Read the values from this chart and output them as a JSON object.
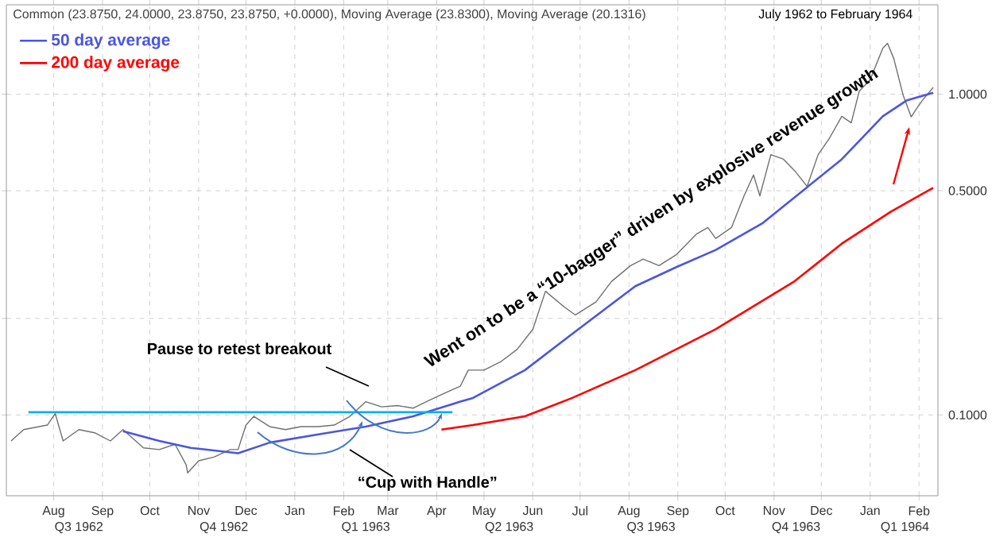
{
  "chart_data": {
    "type": "line",
    "title": "Common (23.8750, 24.0000, 23.8750, 23.8750, +0.0000), Moving Average (23.8300), Moving Average (20.1316)",
    "subtitle": "July 1962 to February 1964",
    "annotations": [
      "Went on to be a “10-bagger” driven by explosive revenue growth",
      "Pause to retest breakout",
      "“Cup with Handle”"
    ],
    "series": [
      {
        "color": "#707070",
        "x": [
          "1962-07-05",
          "1962-07-13",
          "1962-07-28",
          "1962-08-02",
          "1962-08-07",
          "1962-08-17",
          "1962-08-27",
          "1962-09-06",
          "1962-09-14",
          "1962-09-27",
          "1962-10-07",
          "1962-10-17",
          "1962-10-24",
          "1962-10-25",
          "1962-11-01",
          "1962-11-11",
          "1962-11-21",
          "1962-11-26",
          "1962-12-01",
          "1962-12-06",
          "1962-12-16",
          "1962-12-26",
          "1963-01-05",
          "1963-01-16",
          "1963-01-26",
          "1963-02-05",
          "1963-02-15",
          "1963-02-25",
          "1963-03-07",
          "1963-03-17",
          "1963-03-27",
          "1963-04-06",
          "1963-04-16",
          "1963-04-21",
          "1963-05-01",
          "1963-05-12",
          "1963-05-22",
          "1963-06-01",
          "1963-06-09",
          "1963-06-21",
          "1963-06-28",
          "1963-07-11",
          "1963-07-21",
          "1963-08-02",
          "1963-08-10",
          "1963-08-20",
          "1963-08-31",
          "1963-09-13",
          "1963-09-20",
          "1963-09-25",
          "1963-10-05",
          "1963-10-13",
          "1963-10-19",
          "1963-10-23",
          "1963-10-30",
          "1963-11-07",
          "1963-11-14",
          "1963-11-22",
          "1963-11-29",
          "1963-12-06",
          "1963-12-14",
          "1963-12-20",
          "1963-12-25",
          "1964-01-01",
          "1964-01-09",
          "1964-01-12",
          "1964-01-16",
          "1964-01-22",
          "1964-01-27",
          "1964-01-31",
          "1964-02-03",
          "1964-02-10"
        ],
        "values": [
          0.083,
          0.09,
          0.093,
          0.101,
          0.083,
          0.09,
          0.088,
          0.083,
          0.09,
          0.079,
          0.078,
          0.081,
          0.07,
          0.066,
          0.072,
          0.074,
          0.078,
          0.078,
          0.093,
          0.099,
          0.092,
          0.09,
          0.092,
          0.092,
          0.093,
          0.099,
          0.11,
          0.106,
          0.107,
          0.105,
          0.111,
          0.117,
          0.123,
          0.138,
          0.138,
          0.147,
          0.16,
          0.185,
          0.243,
          0.217,
          0.205,
          0.225,
          0.261,
          0.292,
          0.306,
          0.292,
          0.316,
          0.367,
          0.384,
          0.355,
          0.384,
          0.482,
          0.56,
          0.482,
          0.648,
          0.627,
          0.578,
          0.516,
          0.648,
          0.727,
          0.853,
          0.814,
          1.02,
          1.11,
          1.39,
          1.44,
          1.29,
          0.99,
          0.85,
          0.91,
          0.955,
          1.05
        ]
      },
      {
        "name": "50 day average",
        "color": "#4b55e0",
        "x": [
          "1962-09-14",
          "1962-10-07",
          "1962-10-27",
          "1962-11-26",
          "1962-12-16",
          "1963-01-16",
          "1963-02-15",
          "1963-03-17",
          "1963-04-16",
          "1963-04-24",
          "1963-05-27",
          "1963-06-26",
          "1963-08-05",
          "1963-08-31",
          "1963-09-25",
          "1963-10-25",
          "1963-11-19",
          "1963-12-14",
          "1964-01-09",
          "1964-01-24",
          "1964-02-10"
        ],
        "values": [
          0.089,
          0.083,
          0.079,
          0.076,
          0.082,
          0.087,
          0.092,
          0.099,
          0.11,
          0.113,
          0.138,
          0.179,
          0.252,
          0.289,
          0.327,
          0.397,
          0.499,
          0.627,
          0.853,
          0.955,
          1.01
        ]
      },
      {
        "name": "200 day average",
        "color": "#ff0000",
        "x": [
          "1963-04-04",
          "1963-04-24",
          "1963-05-27",
          "1963-06-26",
          "1963-08-05",
          "1963-09-25",
          "1963-11-14",
          "1963-12-14",
          "1964-01-14",
          "1964-02-10"
        ],
        "values": [
          0.09,
          0.093,
          0.099,
          0.113,
          0.138,
          0.185,
          0.261,
          0.342,
          0.43,
          0.511
        ]
      },
      {
        "color": "#00b0f0",
        "x": [
          "1962-07-16",
          "1963-04-11"
        ],
        "values": [
          0.102,
          0.102
        ]
      }
    ],
    "log": "y",
    "grid": true,
    "legend": "top left",
    "xlim": [
      "1962-07-02",
      "1964-02-13"
    ],
    "x2lim": [
      "1962-07-02",
      "1964-02-13"
    ],
    "ylim": [
      0.056,
      1.9
    ],
    "xticks": [
      {
        "value": "1962-08-01",
        "label": "Aug"
      },
      {
        "value": "1962-09-01",
        "label": "Sep"
      },
      {
        "value": "1962-10-01",
        "label": "Oct"
      },
      {
        "value": "1962-11-01",
        "label": "Nov"
      },
      {
        "value": "1962-12-01",
        "label": "Dec"
      },
      {
        "value": "1963-01-01",
        "label": "Jan"
      },
      {
        "value": "1963-02-01",
        "label": "Feb"
      },
      {
        "value": "1963-03-01",
        "label": "Mar"
      },
      {
        "value": "1963-04-01",
        "label": "Apr"
      },
      {
        "value": "1963-05-01",
        "label": "May"
      },
      {
        "value": "1963-06-01",
        "label": "Jun"
      },
      {
        "value": "1963-07-01",
        "label": "Jul"
      },
      {
        "value": "1963-08-01",
        "label": "Aug"
      },
      {
        "value": "1963-09-01",
        "label": "Sep"
      },
      {
        "value": "1963-10-01",
        "label": "Oct"
      },
      {
        "value": "1963-11-01",
        "label": "Nov"
      },
      {
        "value": "1963-12-01",
        "label": "Dec"
      },
      {
        "value": "1964-01-01",
        "label": "Jan"
      },
      {
        "value": "1964-02-01",
        "label": "Feb"
      }
    ],
    "x2ticks": [
      {
        "value": "1962-08-17",
        "label": "Q3 1962"
      },
      {
        "value": "1962-11-17",
        "label": "Q4 1962"
      },
      {
        "value": "1963-02-15",
        "label": "Q1 1963"
      },
      {
        "value": "1963-05-17",
        "label": "Q2 1963"
      },
      {
        "value": "1963-08-15",
        "label": "Q3 1963"
      },
      {
        "value": "1963-11-15",
        "label": "Q4 1963"
      },
      {
        "value": "1964-01-23",
        "label": "Q1 1964"
      }
    ],
    "yticks": [
      {
        "value": 0.1,
        "label": "0.1000"
      },
      {
        "value": 0.2,
        "label": null
      },
      {
        "value": 0.5,
        "label": "0.5000"
      },
      {
        "value": 1,
        "label": "1.0000"
      }
    ]
  }
}
